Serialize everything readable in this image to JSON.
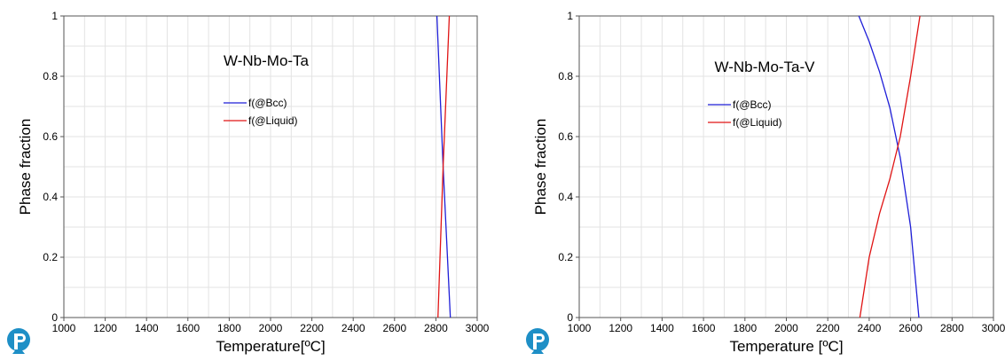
{
  "colors": {
    "bcc": "#1f1fd8",
    "liquid": "#e01414",
    "grid": "#e3e3e3",
    "frame": "#555555",
    "logo": "#1e8fc6"
  },
  "chart_data": [
    {
      "type": "line",
      "title": "W-Nb-Mo-Ta",
      "xlabel": "Temperature[ºC]",
      "ylabel": "Phase fraction",
      "xlim": [
        1000,
        3000
      ],
      "ylim": [
        0,
        1
      ],
      "grid": true,
      "legend_position": "upper-center",
      "x_ticks": [
        "1000",
        "1200",
        "1400",
        "1600",
        "1800",
        "2000",
        "2200",
        "2400",
        "2600",
        "2800",
        "3000"
      ],
      "y_ticks": [
        "0",
        "0.2",
        "0.4",
        "0.6",
        "0.8",
        "1"
      ],
      "series": [
        {
          "name": "f(@Bcc)",
          "color": "#1f1fd8",
          "x": [
            2805,
            2835,
            2870
          ],
          "y": [
            1,
            0.5,
            0
          ]
        },
        {
          "name": "f(@Liquid)",
          "color": "#e01414",
          "x": [
            2810,
            2835,
            2865
          ],
          "y": [
            0,
            0.5,
            1
          ]
        }
      ]
    },
    {
      "type": "line",
      "title": "W-Nb-Mo-Ta-V",
      "xlabel": "Temperature [ºC]",
      "ylabel": "Phase fraction",
      "xlim": [
        1000,
        3000
      ],
      "ylim": [
        0,
        1
      ],
      "grid": true,
      "legend_position": "upper-center",
      "x_ticks": [
        "1000",
        "1200",
        "1400",
        "1600",
        "1800",
        "2000",
        "2200",
        "2400",
        "2600",
        "2800",
        "3000"
      ],
      "y_ticks": [
        "0",
        "0.2",
        "0.4",
        "0.6",
        "0.8",
        "1"
      ],
      "series": [
        {
          "name": "f(@Bcc)",
          "color": "#1f1fd8",
          "x": [
            2350,
            2400,
            2450,
            2500,
            2550,
            2600,
            2640
          ],
          "y": [
            1,
            0.915,
            0.815,
            0.695,
            0.53,
            0.3,
            0
          ]
        },
        {
          "name": "f(@Liquid)",
          "color": "#e01414",
          "x": [
            2355,
            2400,
            2450,
            2500,
            2550,
            2600,
            2645
          ],
          "y": [
            0,
            0.2,
            0.345,
            0.46,
            0.6,
            0.8,
            1
          ]
        }
      ]
    }
  ]
}
